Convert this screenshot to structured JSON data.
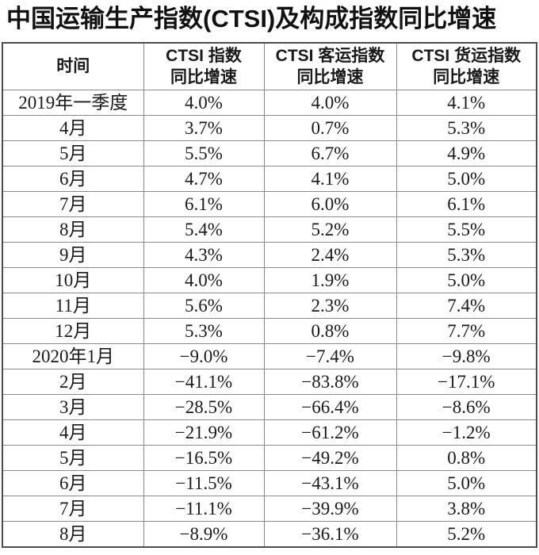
{
  "title": "中国运输生产指数(CTSI)及构成指数同比增速",
  "colors": {
    "background": "#ffffff",
    "text": "#1a1a1a",
    "inner_grid": "#8a8a8a",
    "outer_border": "#4d4d4d"
  },
  "table": {
    "headers": [
      {
        "line1": "时间"
      },
      {
        "line1": "CTSI 指数",
        "line2": "同比增速"
      },
      {
        "line1": "CTSI 客运指数",
        "line2": "同比增速"
      },
      {
        "line1": "CTSI 货运指数",
        "line2": "同比增速"
      }
    ],
    "rows": [
      {
        "time": "2019年一季度",
        "ctsi": "4.0%",
        "passenger": "4.0%",
        "freight": "4.1%"
      },
      {
        "time": "4月",
        "ctsi": "3.7%",
        "passenger": "0.7%",
        "freight": "5.3%"
      },
      {
        "time": "5月",
        "ctsi": "5.5%",
        "passenger": "6.7%",
        "freight": "4.9%"
      },
      {
        "time": "6月",
        "ctsi": "4.7%",
        "passenger": "4.1%",
        "freight": "5.0%"
      },
      {
        "time": "7月",
        "ctsi": "6.1%",
        "passenger": "6.0%",
        "freight": "6.1%"
      },
      {
        "time": "8月",
        "ctsi": "5.4%",
        "passenger": "5.2%",
        "freight": "5.5%"
      },
      {
        "time": "9月",
        "ctsi": "4.3%",
        "passenger": "2.4%",
        "freight": "5.3%"
      },
      {
        "time": "10月",
        "ctsi": "4.0%",
        "passenger": "1.9%",
        "freight": "5.0%"
      },
      {
        "time": "11月",
        "ctsi": "5.6%",
        "passenger": "2.3%",
        "freight": "7.4%"
      },
      {
        "time": "12月",
        "ctsi": "5.3%",
        "passenger": "0.8%",
        "freight": "7.7%"
      },
      {
        "time": "2020年1月",
        "ctsi": "−9.0%",
        "passenger": "−7.4%",
        "freight": "−9.8%"
      },
      {
        "time": "2月",
        "ctsi": "−41.1%",
        "passenger": "−83.8%",
        "freight": "−17.1%"
      },
      {
        "time": "3月",
        "ctsi": "−28.5%",
        "passenger": "−66.4%",
        "freight": "−8.6%"
      },
      {
        "time": "4月",
        "ctsi": "−21.9%",
        "passenger": "−61.2%",
        "freight": "−1.2%"
      },
      {
        "time": "5月",
        "ctsi": "−16.5%",
        "passenger": "−49.2%",
        "freight": "0.8%"
      },
      {
        "time": "6月",
        "ctsi": "−11.5%",
        "passenger": "−43.1%",
        "freight": "5.0%"
      },
      {
        "time": "7月",
        "ctsi": "−11.1%",
        "passenger": "−39.9%",
        "freight": "3.8%"
      },
      {
        "time": "8月",
        "ctsi": "−8.9%",
        "passenger": "−36.1%",
        "freight": "5.2%"
      }
    ]
  },
  "chart_data": {
    "type": "table",
    "title": "中国运输生产指数(CTSI)及构成指数同比增速",
    "columns": [
      "时间",
      "CTSI指数同比增速",
      "CTSI客运指数同比增速",
      "CTSI货运指数同比增速"
    ],
    "unit": "percent",
    "rows": [
      [
        "2019年一季度",
        4.0,
        4.0,
        4.1
      ],
      [
        "4月",
        3.7,
        0.7,
        5.3
      ],
      [
        "5月",
        5.5,
        6.7,
        4.9
      ],
      [
        "6月",
        4.7,
        4.1,
        5.0
      ],
      [
        "7月",
        6.1,
        6.0,
        6.1
      ],
      [
        "8月",
        5.4,
        5.2,
        5.5
      ],
      [
        "9月",
        4.3,
        2.4,
        5.3
      ],
      [
        "10月",
        4.0,
        1.9,
        5.0
      ],
      [
        "11月",
        5.6,
        2.3,
        7.4
      ],
      [
        "12月",
        5.3,
        0.8,
        7.7
      ],
      [
        "2020年1月",
        -9.0,
        -7.4,
        -9.8
      ],
      [
        "2月",
        -41.1,
        -83.8,
        -17.1
      ],
      [
        "3月",
        -28.5,
        -66.4,
        -8.6
      ],
      [
        "4月",
        -21.9,
        -61.2,
        -1.2
      ],
      [
        "5月",
        -16.5,
        -49.2,
        0.8
      ],
      [
        "6月",
        -11.5,
        -43.1,
        5.0
      ],
      [
        "7月",
        -11.1,
        -39.9,
        3.8
      ],
      [
        "8月",
        -8.9,
        -36.1,
        5.2
      ]
    ]
  }
}
